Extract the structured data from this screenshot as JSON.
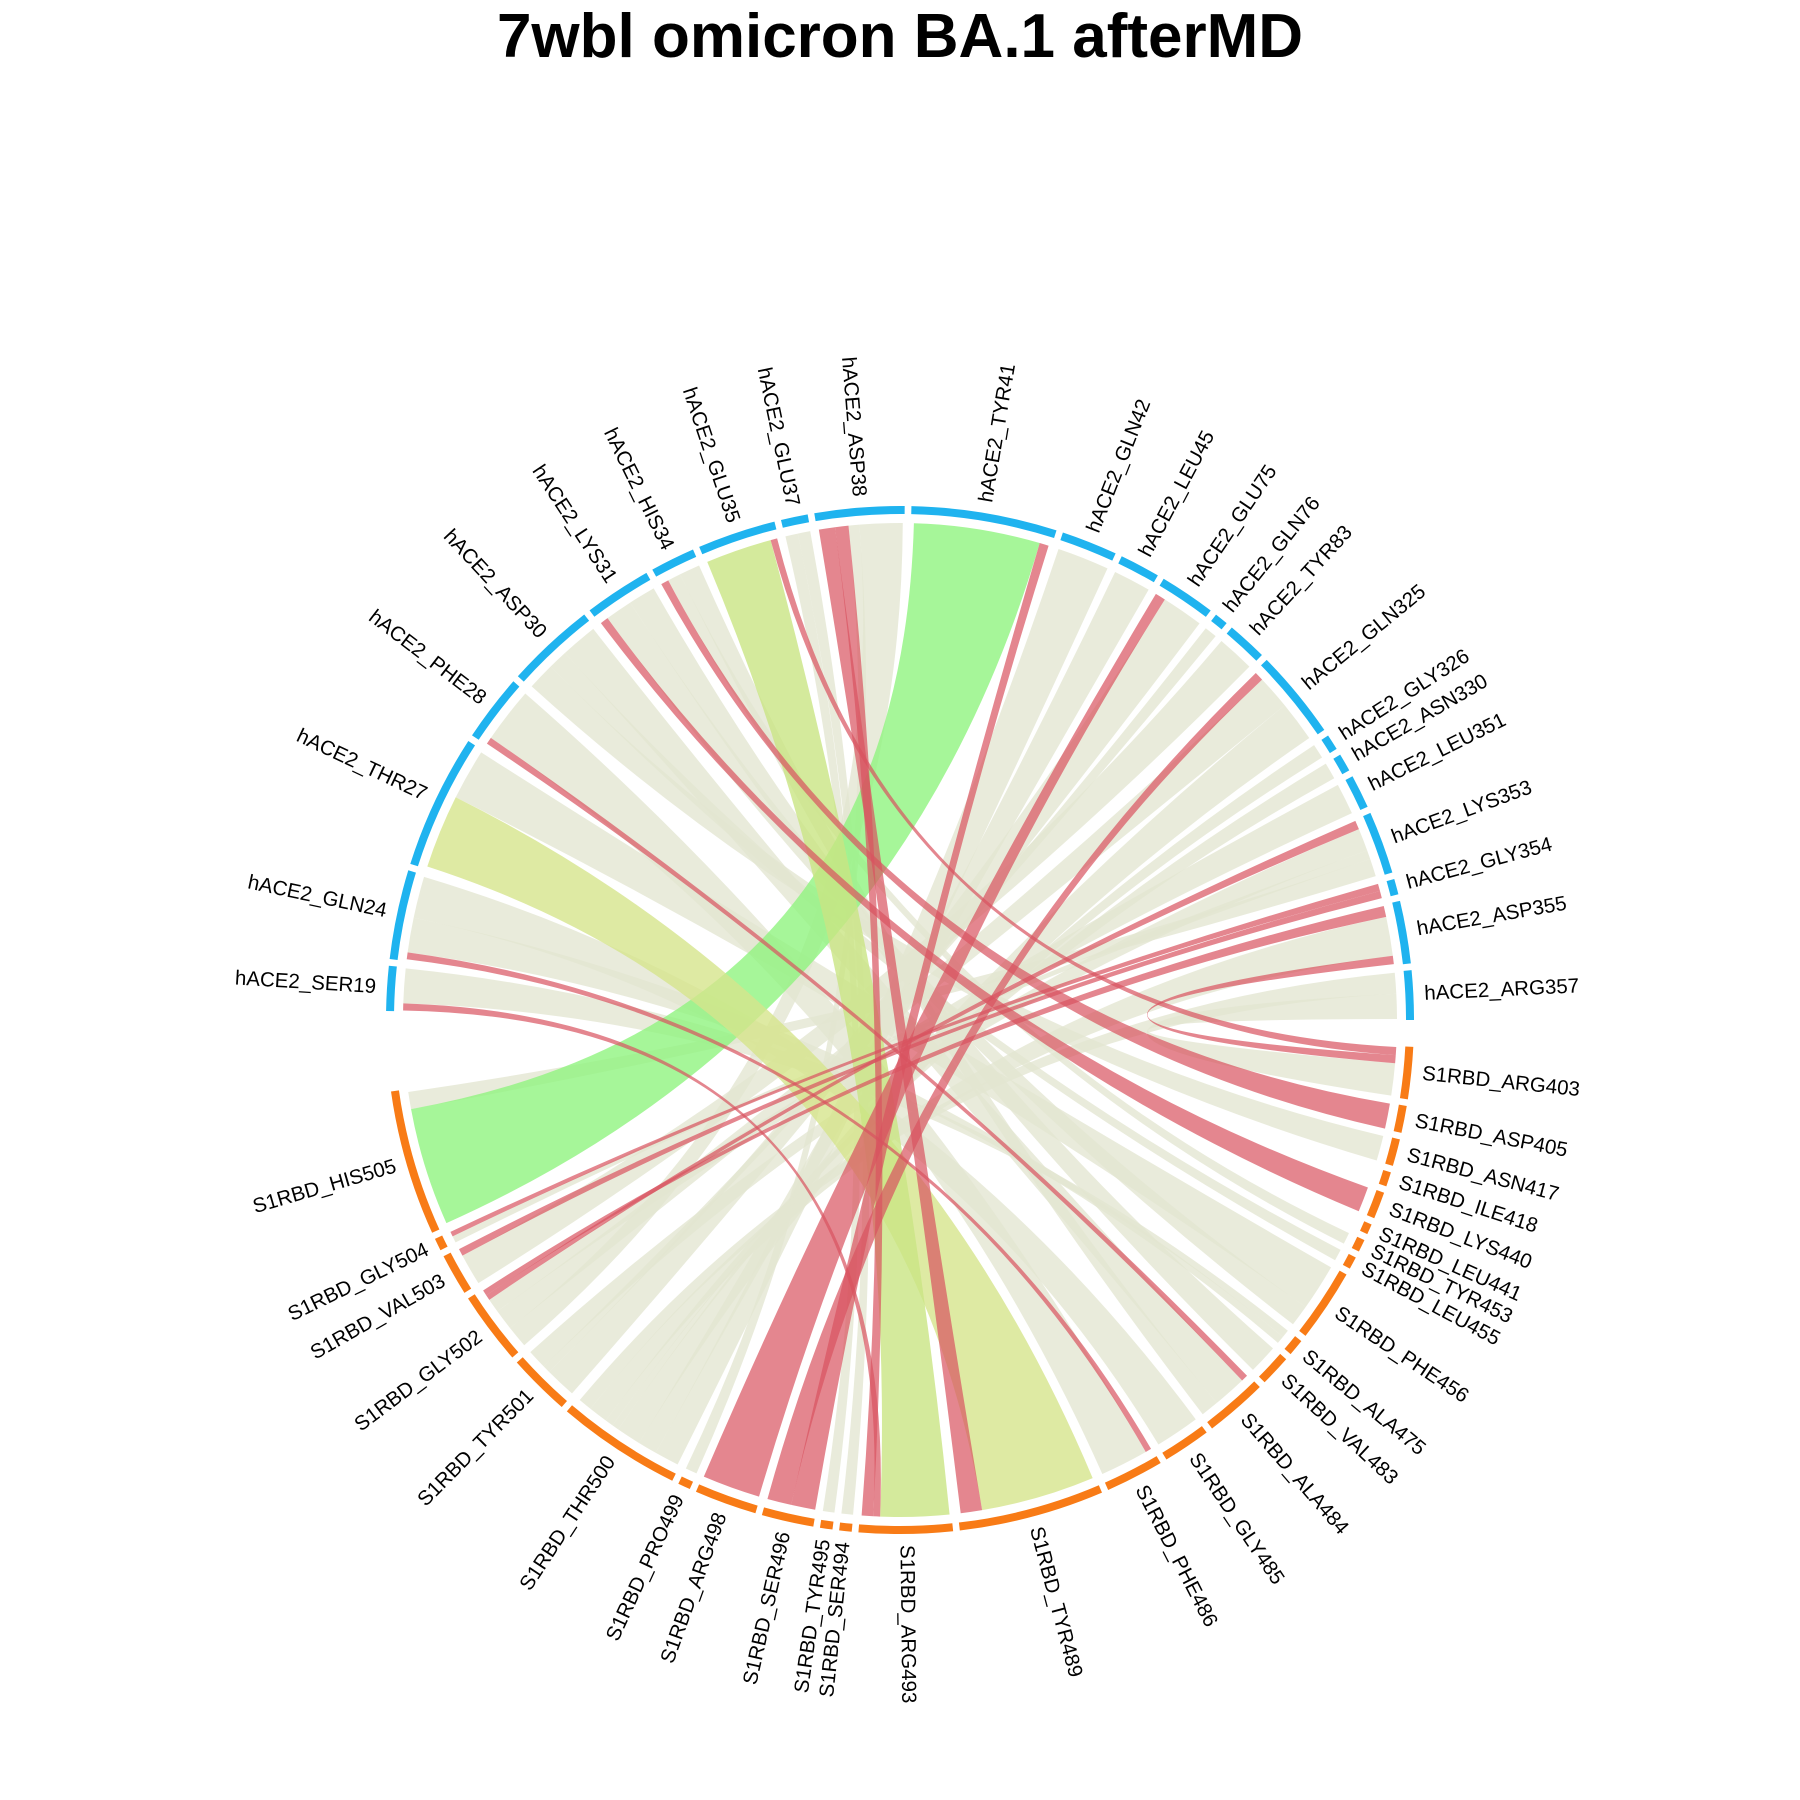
{
  "title": "7wbl omicron BA.1 afterMD",
  "chart_data": {
    "type": "chord",
    "title": "7wbl omicron BA.1 afterMD",
    "groups": [
      {
        "name": "hACE2",
        "color": "#1fb3ef"
      },
      {
        "name": "S1RBD",
        "color": "#f87b16"
      }
    ],
    "colors": {
      "link_default": "#e3e5d1",
      "link_highlight": "#d9535f"
    },
    "segments": [
      {
        "name": "hACE2_SER19",
        "group": "hACE2",
        "weight": 2
      },
      {
        "name": "hACE2_GLN24",
        "group": "hACE2",
        "weight": 4
      },
      {
        "name": "hACE2_THR27",
        "group": "hACE2",
        "weight": 6
      },
      {
        "name": "hACE2_PHE28",
        "group": "hACE2",
        "weight": 3
      },
      {
        "name": "hACE2_ASP30",
        "group": "hACE2",
        "weight": 4
      },
      {
        "name": "hACE2_LYS31",
        "group": "hACE2",
        "weight": 3
      },
      {
        "name": "hACE2_HIS34",
        "group": "hACE2",
        "weight": 2
      },
      {
        "name": "hACE2_GLU35",
        "group": "hACE2",
        "weight": 3.5
      },
      {
        "name": "hACE2_GLU37",
        "group": "hACE2",
        "weight": 1.2
      },
      {
        "name": "hACE2_ASP38",
        "group": "hACE2",
        "weight": 4
      },
      {
        "name": "hACE2_TYR41",
        "group": "hACE2",
        "weight": 6.5
      },
      {
        "name": "hACE2_GLN42",
        "group": "hACE2",
        "weight": 2.5
      },
      {
        "name": "hACE2_LEU45",
        "group": "hACE2",
        "weight": 1.8
      },
      {
        "name": "hACE2_GLU75",
        "group": "hACE2",
        "weight": 2.5
      },
      {
        "name": "hACE2_GLN76",
        "group": "hACE2",
        "weight": 0.6
      },
      {
        "name": "hACE2_TYR83",
        "group": "hACE2",
        "weight": 1.8
      },
      {
        "name": "hACE2_GLN325",
        "group": "hACE2",
        "weight": 4
      },
      {
        "name": "hACE2_GLY326",
        "group": "hACE2",
        "weight": 0.7
      },
      {
        "name": "hACE2_ASN330",
        "group": "hACE2",
        "weight": 0.8
      },
      {
        "name": "hACE2_LEU351",
        "group": "hACE2",
        "weight": 1.5
      },
      {
        "name": "hACE2_LYS353",
        "group": "hACE2",
        "weight": 2.8
      },
      {
        "name": "hACE2_GLY354",
        "group": "hACE2",
        "weight": 0.7
      },
      {
        "name": "hACE2_ASP355",
        "group": "hACE2",
        "weight": 2.8
      },
      {
        "name": "hACE2_ARG357",
        "group": "hACE2",
        "weight": 2.2
      },
      {
        "name": "S1RBD_ARG403",
        "group": "S1RBD",
        "weight": 2.5
      },
      {
        "name": "S1RBD_ASP405",
        "group": "S1RBD",
        "weight": 1.3
      },
      {
        "name": "S1RBD_ASN417",
        "group": "S1RBD",
        "weight": 1.3
      },
      {
        "name": "S1RBD_ILE418",
        "group": "S1RBD",
        "weight": 0.7
      },
      {
        "name": "S1RBD_LYS440",
        "group": "S1RBD",
        "weight": 1.3
      },
      {
        "name": "S1RBD_LEU441",
        "group": "S1RBD",
        "weight": 0.5
      },
      {
        "name": "S1RBD_TYR453",
        "group": "S1RBD",
        "weight": 0.6
      },
      {
        "name": "S1RBD_LEU455",
        "group": "S1RBD",
        "weight": 0.6
      },
      {
        "name": "S1RBD_PHE456",
        "group": "S1RBD",
        "weight": 3.5
      },
      {
        "name": "S1RBD_ALA475",
        "group": "S1RBD",
        "weight": 0.8
      },
      {
        "name": "S1RBD_VAL483",
        "group": "S1RBD",
        "weight": 1.5
      },
      {
        "name": "S1RBD_ALA484",
        "group": "S1RBD",
        "weight": 3
      },
      {
        "name": "S1RBD_GLY485",
        "group": "S1RBD",
        "weight": 2.3
      },
      {
        "name": "S1RBD_PHE486",
        "group": "S1RBD",
        "weight": 2.8
      },
      {
        "name": "S1RBD_TYR489",
        "group": "S1RBD",
        "weight": 7
      },
      {
        "name": "S1RBD_ARG493",
        "group": "S1RBD",
        "weight": 4.5
      },
      {
        "name": "S1RBD_SER494",
        "group": "S1RBD",
        "weight": 0.6
      },
      {
        "name": "S1RBD_TYR495",
        "group": "S1RBD",
        "weight": 0.6
      },
      {
        "name": "S1RBD_SER496",
        "group": "S1RBD",
        "weight": 2.5
      },
      {
        "name": "S1RBD_ARG498",
        "group": "S1RBD",
        "weight": 3
      },
      {
        "name": "S1RBD_PRO499",
        "group": "S1RBD",
        "weight": 0.6
      },
      {
        "name": "S1RBD_THR500",
        "group": "S1RBD",
        "weight": 6
      },
      {
        "name": "S1RBD_TYR501",
        "group": "S1RBD",
        "weight": 3
      },
      {
        "name": "S1RBD_GLY502",
        "group": "S1RBD",
        "weight": 3.5
      },
      {
        "name": "S1RBD_VAL503",
        "group": "S1RBD",
        "weight": 2
      },
      {
        "name": "S1RBD_GLY504",
        "group": "S1RBD",
        "weight": 0.6
      },
      {
        "name": "S1RBD_HIS505",
        "group": "S1RBD",
        "weight": 7
      }
    ],
    "links": [
      {
        "source": "hACE2_TYR41",
        "target": "S1RBD_HIS505",
        "value": 5.5,
        "color": "#90f47f"
      },
      {
        "source": "hACE2_THR27",
        "target": "S1RBD_TYR489",
        "value": 3.2,
        "color": "#d6e58c"
      },
      {
        "source": "hACE2_GLU35",
        "target": "S1RBD_ARG493",
        "value": 3,
        "color": "#c9e583"
      },
      {
        "source": "hACE2_SER19",
        "target": "S1RBD_ARG493",
        "value": 0.3,
        "color": "#d9535f"
      },
      {
        "source": "hACE2_SER19",
        "target": "S1RBD_ALA475",
        "value": 1.5,
        "color": "#e3e5d1"
      },
      {
        "source": "hACE2_GLN24",
        "target": "S1RBD_PHE486",
        "value": 0.3,
        "color": "#d9535f"
      },
      {
        "source": "hACE2_GLN24",
        "target": "S1RBD_ALA475",
        "value": 1.5,
        "color": "#e3e5d1"
      },
      {
        "source": "hACE2_GLN24",
        "target": "S1RBD_GLY485",
        "value": 1.8,
        "color": "#e3e5d1"
      },
      {
        "source": "hACE2_THR27",
        "target": "S1RBD_PHE456",
        "value": 2.2,
        "color": "#e3e5d1"
      },
      {
        "source": "hACE2_PHE28",
        "target": "S1RBD_ALA484",
        "value": 0.3,
        "color": "#d9535f"
      },
      {
        "source": "hACE2_PHE28",
        "target": "S1RBD_PHE486",
        "value": 2.4,
        "color": "#e3e5d1"
      },
      {
        "source": "hACE2_ASP30",
        "target": "S1RBD_ASN417",
        "value": 1.1,
        "color": "#e3e5d1"
      },
      {
        "source": "hACE2_ASP30",
        "target": "S1RBD_LEU455",
        "value": 0.8,
        "color": "#e3e5d1"
      },
      {
        "source": "hACE2_ASP30",
        "target": "S1RBD_ALA484",
        "value": 1.5,
        "color": "#e3e5d1"
      },
      {
        "source": "hACE2_LYS31",
        "target": "S1RBD_LYS440",
        "value": 0.3,
        "color": "#d9535f"
      },
      {
        "source": "hACE2_LYS31",
        "target": "S1RBD_PHE456",
        "value": 1,
        "color": "#e3e5d1"
      },
      {
        "source": "hACE2_LYS31",
        "target": "S1RBD_VAL483",
        "value": 1,
        "color": "#e3e5d1"
      },
      {
        "source": "hACE2_HIS34",
        "target": "S1RBD_ASP405",
        "value": 0.3,
        "color": "#d9535f"
      },
      {
        "source": "hACE2_HIS34",
        "target": "S1RBD_TYR453",
        "value": 0.5,
        "color": "#e3e5d1"
      },
      {
        "source": "hACE2_HIS34",
        "target": "S1RBD_ALA484",
        "value": 0.8,
        "color": "#e3e5d1"
      },
      {
        "source": "hACE2_GLU35",
        "target": "S1RBD_ARG403",
        "value": 0.3,
        "color": "#d9535f"
      },
      {
        "source": "hACE2_GLU37",
        "target": "S1RBD_TYR495",
        "value": 0.4,
        "color": "#e3e5d1"
      },
      {
        "source": "hACE2_GLU37",
        "target": "S1RBD_SER494",
        "value": 0.4,
        "color": "#e3e5d1"
      },
      {
        "source": "hACE2_ASP38",
        "target": "S1RBD_TYR489",
        "value": 0.6,
        "color": "#d9535f"
      },
      {
        "source": "hACE2_ASP38",
        "target": "S1RBD_ARG493",
        "value": 0.5,
        "color": "#d9535f"
      },
      {
        "source": "hACE2_ASP38",
        "target": "S1RBD_PRO499",
        "value": 0.4,
        "color": "#e3e5d1"
      },
      {
        "source": "hACE2_ASP38",
        "target": "S1RBD_GLY502",
        "value": 1.6,
        "color": "#e3e5d1"
      },
      {
        "source": "hACE2_TYR41",
        "target": "S1RBD_SER496",
        "value": 0.4,
        "color": "#d9535f"
      },
      {
        "source": "hACE2_GLN42",
        "target": "S1RBD_THR500",
        "value": 1.8,
        "color": "#e3e5d1"
      },
      {
        "source": "hACE2_LEU45",
        "target": "S1RBD_THR500",
        "value": 1.4,
        "color": "#e3e5d1"
      },
      {
        "source": "hACE2_GLU75",
        "target": "S1RBD_ARG498",
        "value": 0.4,
        "color": "#d9535f"
      },
      {
        "source": "hACE2_GLU75",
        "target": "S1RBD_TYR501",
        "value": 1.6,
        "color": "#e3e5d1"
      },
      {
        "source": "hACE2_GLN76",
        "target": "S1RBD_TYR501",
        "value": 0.4,
        "color": "#e3e5d1"
      },
      {
        "source": "hACE2_TYR83",
        "target": "S1RBD_VAL503",
        "value": 1.3,
        "color": "#e3e5d1"
      },
      {
        "source": "hACE2_GLN325",
        "target": "S1RBD_SER496",
        "value": 0.4,
        "color": "#d9535f"
      },
      {
        "source": "hACE2_GLN325",
        "target": "S1RBD_GLY502",
        "value": 1.5,
        "color": "#e3e5d1"
      },
      {
        "source": "hACE2_GLN325",
        "target": "S1RBD_THR500",
        "value": 1.8,
        "color": "#e3e5d1"
      },
      {
        "source": "hACE2_GLY326",
        "target": "S1RBD_THR500",
        "value": 0.5,
        "color": "#e3e5d1"
      },
      {
        "source": "hACE2_ASN330",
        "target": "S1RBD_THR500",
        "value": 0.6,
        "color": "#e3e5d1"
      },
      {
        "source": "hACE2_LEU351",
        "target": "S1RBD_GLY502",
        "value": 1,
        "color": "#e3e5d1"
      },
      {
        "source": "hACE2_LYS353",
        "target": "S1RBD_GLY502",
        "value": 0.4,
        "color": "#d9535f"
      },
      {
        "source": "hACE2_LYS353",
        "target": "S1RBD_TYR501",
        "value": 1,
        "color": "#e3e5d1"
      },
      {
        "source": "hACE2_LYS353",
        "target": "S1RBD_GLY504",
        "value": 0.4,
        "color": "#e3e5d1"
      },
      {
        "source": "hACE2_LYS353",
        "target": "S1RBD_HIS505",
        "value": 0.8,
        "color": "#e3e5d1"
      },
      {
        "source": "hACE2_GLY354",
        "target": "S1RBD_GLY504",
        "value": 0.3,
        "color": "#d9535f"
      },
      {
        "source": "hACE2_GLY354",
        "target": "S1RBD_VAL503",
        "value": 0.3,
        "color": "#d9535f"
      },
      {
        "source": "hACE2_ASP355",
        "target": "S1RBD_GLY502",
        "value": 0.4,
        "color": "#d9535f"
      },
      {
        "source": "hACE2_ASP355",
        "target": "S1RBD_THR500",
        "value": 1.4,
        "color": "#e3e5d1"
      },
      {
        "source": "hACE2_ASP355",
        "target": "S1RBD_ARG403",
        "value": 0.3,
        "color": "#d9535f"
      },
      {
        "source": "hACE2_ARG357",
        "target": "S1RBD_THR500",
        "value": 1,
        "color": "#e3e5d1"
      },
      {
        "source": "hACE2_ARG357",
        "target": "S1RBD_ARG403",
        "value": 1.2,
        "color": "#e3e5d1"
      }
    ]
  }
}
